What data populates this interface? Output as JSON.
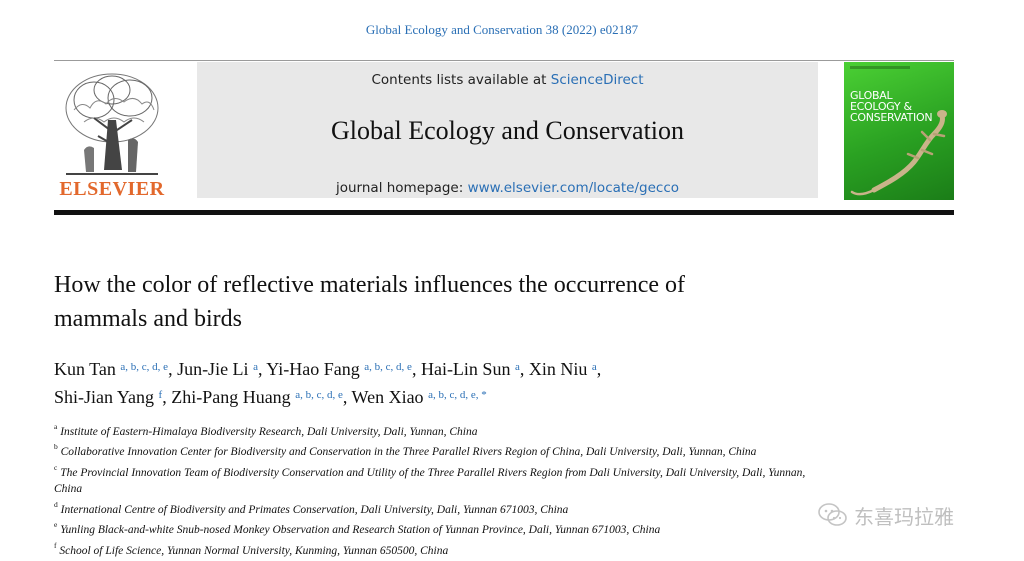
{
  "header": {
    "citation": "Global Ecology and Conservation 38 (2022) e02187",
    "contents_prefix": "Contents lists available at ",
    "contents_link": "ScienceDirect",
    "journal_title": "Global Ecology and Conservation",
    "homepage_prefix": "journal homepage: ",
    "homepage_url": "www.elsevier.com/locate/gecco",
    "publisher_logo_text": "ELSEVIER",
    "cover_title_lines": [
      "GLOBAL",
      "ECOLOGY &",
      "CONSERVATION"
    ],
    "colors": {
      "link": "#2a6fb5",
      "elsevier_orange": "#e2682c",
      "cover_green": "#2aa122"
    }
  },
  "article": {
    "title_line1": "How the color of reflective materials influences the occurrence of",
    "title_line2": "mammals and birds"
  },
  "authors": [
    {
      "name": "Kun Tan",
      "sup": "a, b, c, d, e",
      "sep": ", "
    },
    {
      "name": "Jun-Jie Li",
      "sup": "a",
      "sep": ", "
    },
    {
      "name": "Yi-Hao Fang",
      "sup": "a, b, c, d, e",
      "sep": ", "
    },
    {
      "name": "Hai-Lin Sun",
      "sup": "a",
      "sep": ", "
    },
    {
      "name": "Xin Niu",
      "sup": "a",
      "sep": ","
    },
    {
      "name": "Shi-Jian Yang",
      "sup": "f",
      "sep": ", "
    },
    {
      "name": "Zhi-Pang Huang",
      "sup": "a, b, c, d, e",
      "sep": ", "
    },
    {
      "name": "Wen Xiao",
      "sup": "a, b, c, d, e, *",
      "sep": ""
    }
  ],
  "affiliations": [
    {
      "key": "a",
      "text": "Institute of Eastern-Himalaya Biodiversity Research, Dali University, Dali, Yunnan, China"
    },
    {
      "key": "b",
      "text": "Collaborative Innovation Center for Biodiversity and Conservation in the Three Parallel Rivers Region of China, Dali University, Dali, Yunnan, China"
    },
    {
      "key": "c",
      "text": "The Provincial Innovation Team of Biodiversity Conservation and Utility of the Three Parallel Rivers Region from Dali University, Dali University, Dali, Yunnan, China"
    },
    {
      "key": "d",
      "text": "International Centre of Biodiversity and Primates Conservation, Dali University, Dali, Yunnan 671003, China"
    },
    {
      "key": "e",
      "text": "Yunling Black-and-white Snub-nosed Monkey Observation and Research Station of Yunnan Province, Dali, Yunnan 671003, China"
    },
    {
      "key": "f",
      "text": "School of Life Science, Yunnan Normal University, Kunming, Yunnan 650500, China"
    }
  ],
  "watermark": {
    "text": "东喜玛拉雅",
    "icon": "wechat-icon"
  }
}
